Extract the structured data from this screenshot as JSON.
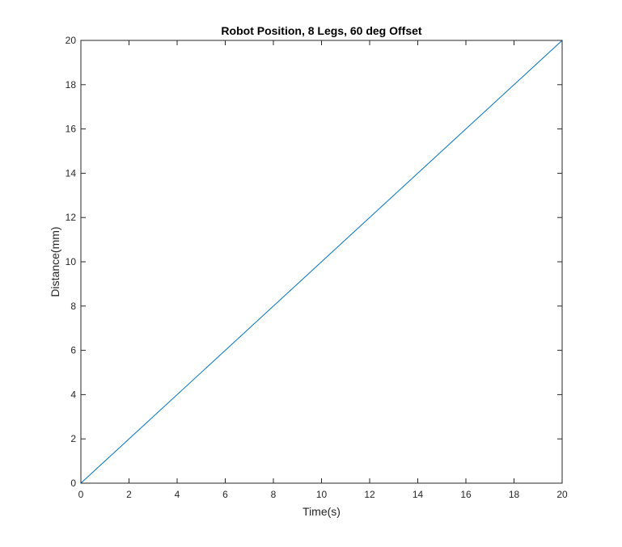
{
  "chart_data": {
    "type": "line",
    "title": "Robot Position, 8 Legs, 60 deg Offset",
    "xlabel": "Time(s)",
    "ylabel": "Distance(mm)",
    "xlim": [
      0,
      20
    ],
    "ylim": [
      0,
      20
    ],
    "xticks": [
      0,
      2,
      4,
      6,
      8,
      10,
      12,
      14,
      16,
      18,
      20
    ],
    "yticks": [
      0,
      2,
      4,
      6,
      8,
      10,
      12,
      14,
      16,
      18,
      20
    ],
    "grid": false,
    "legend": "none",
    "series": [
      {
        "color": "#0072bd",
        "x": [
          0,
          20
        ],
        "y": [
          0,
          20
        ]
      }
    ]
  }
}
